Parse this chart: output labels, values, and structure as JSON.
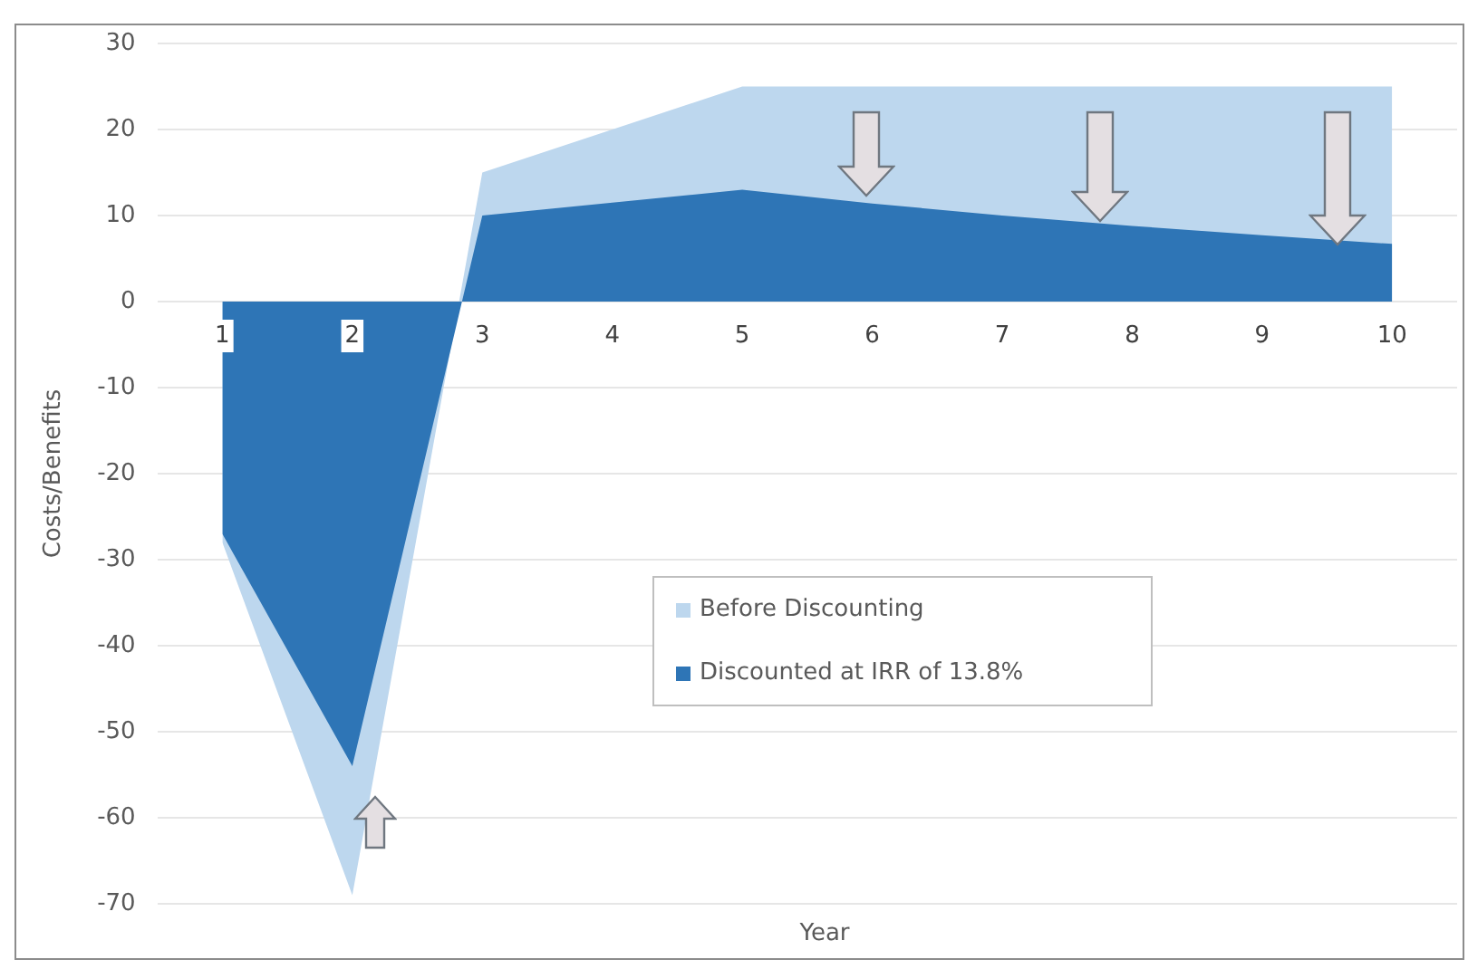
{
  "chart_data": {
    "type": "area",
    "xlabel": "Year",
    "ylabel": "Costs/Benefits",
    "categories": [
      "1",
      "2",
      "3",
      "4",
      "5",
      "6",
      "7",
      "8",
      "9",
      "10"
    ],
    "series": [
      {
        "name": "Before Discounting",
        "color": "#bdd7ee",
        "values": [
          -28,
          -69,
          15,
          20,
          25,
          25,
          25,
          25,
          25,
          25
        ]
      },
      {
        "name": "Discounted at IRR of 13.8%",
        "color": "#2e75b6",
        "values": [
          -27,
          -54,
          10,
          11.5,
          13,
          11.4,
          10,
          8.8,
          7.7,
          6.7
        ]
      }
    ],
    "ylim": [
      -70,
      30
    ],
    "yticks": [
      -70,
      -60,
      -50,
      -40,
      -30,
      -20,
      -10,
      0,
      10,
      20,
      30
    ],
    "grid": "y",
    "legend": "bottom"
  }
}
